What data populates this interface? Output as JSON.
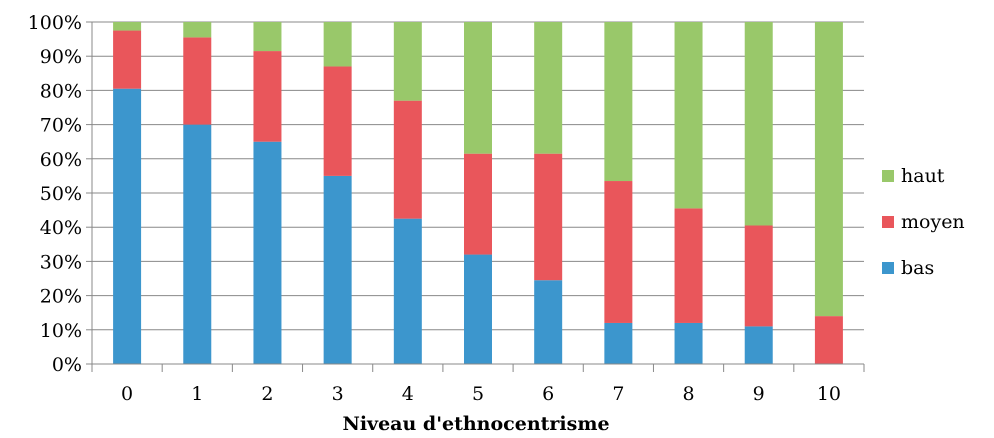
{
  "chart_data": {
    "type": "bar",
    "stacked": true,
    "percent_stacked": true,
    "title": "",
    "xlabel": "Niveau d'ethnocentrisme",
    "ylabel": "",
    "categories": [
      "0",
      "1",
      "2",
      "3",
      "4",
      "5",
      "6",
      "7",
      "8",
      "9",
      "10"
    ],
    "ylim": [
      0,
      100
    ],
    "yticks": [
      "0%",
      "10%",
      "20%",
      "30%",
      "40%",
      "50%",
      "60%",
      "70%",
      "80%",
      "90%",
      "100%"
    ],
    "grid": true,
    "legend_position": "right",
    "series": [
      {
        "name": "bas",
        "color": "#3c96cd",
        "values": [
          80.5,
          70,
          65,
          55,
          42.5,
          32,
          24.5,
          12,
          12,
          11,
          0
        ]
      },
      {
        "name": "moyen",
        "color": "#e9565b",
        "values": [
          17,
          25.5,
          26.5,
          32,
          34.5,
          29.5,
          37,
          41.5,
          33.5,
          29.5,
          14
        ]
      },
      {
        "name": "haut",
        "color": "#99c86a",
        "values": [
          2.5,
          4.5,
          8.5,
          13,
          23,
          38.5,
          38.5,
          46.5,
          54.5,
          59.5,
          86
        ]
      }
    ]
  }
}
